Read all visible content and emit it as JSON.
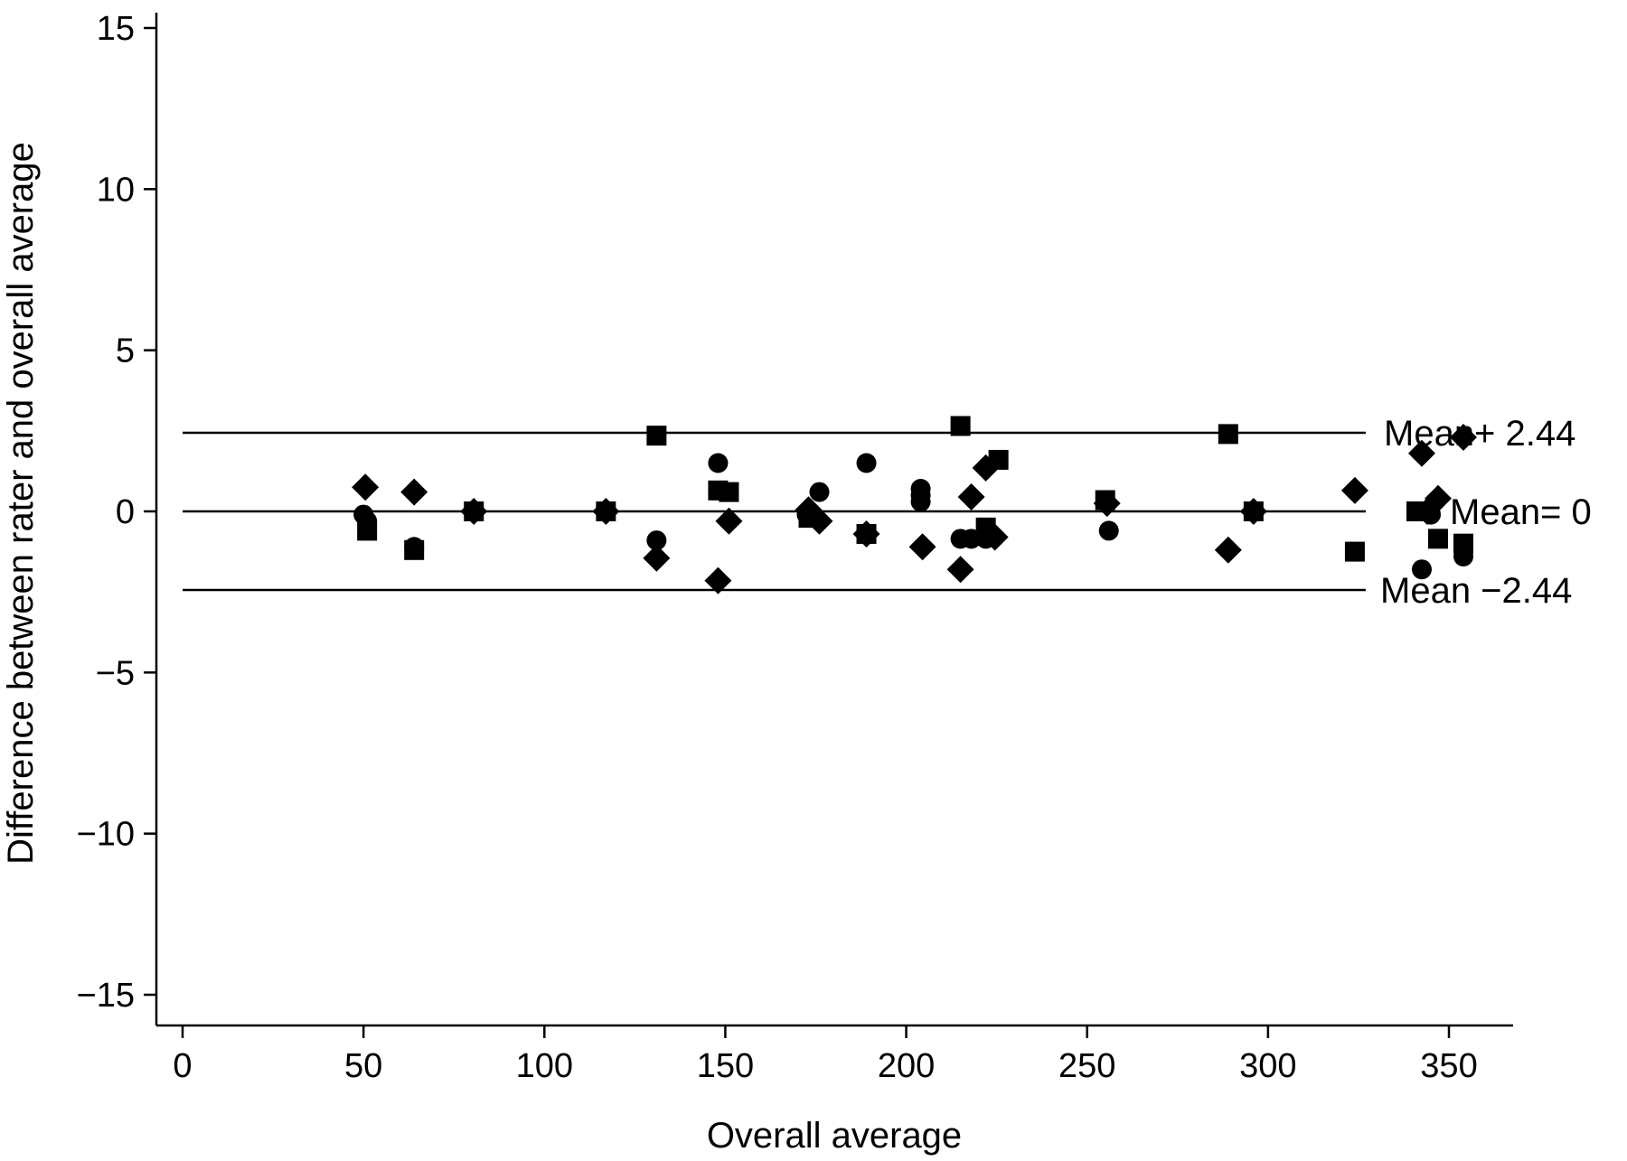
{
  "chart_data": {
    "type": "scatter",
    "title": "",
    "xlabel": "Overall average",
    "ylabel": "Difference between rater and overall average",
    "xlim": [
      -8,
      366
    ],
    "ylim": [
      -15.8,
      15.8
    ],
    "xticks": [
      0,
      50,
      100,
      150,
      200,
      250,
      300,
      350
    ],
    "yticks": [
      15,
      10,
      5,
      0,
      -5,
      -10,
      -15
    ],
    "xtick_labels": [
      "0",
      "50",
      "100",
      "150",
      "200",
      "250",
      "300",
      "350"
    ],
    "ytick_labels": [
      "15",
      "10",
      "5",
      "0",
      "−5",
      "−10",
      "−15"
    ],
    "grid": false,
    "reference_lines": [
      {
        "y": 2.44,
        "label": "Mean+ 2.44"
      },
      {
        "y": 0,
        "label": "Mean= 0"
      },
      {
        "y": -2.44,
        "label": "Mean −2.44"
      }
    ],
    "series": [
      {
        "marker": "circle",
        "points": [
          [
            50,
            -0.1
          ],
          [
            51,
            -0.3
          ],
          [
            64,
            -1.1
          ],
          [
            80.5,
            0
          ],
          [
            117,
            0
          ],
          [
            131,
            -0.9
          ],
          [
            148,
            1.5
          ],
          [
            172.5,
            -0.1
          ],
          [
            176,
            0.6
          ],
          [
            189,
            1.5
          ],
          [
            189,
            -0.7
          ],
          [
            204,
            0.7
          ],
          [
            204,
            0.5
          ],
          [
            204,
            0.3
          ],
          [
            215,
            -0.85
          ],
          [
            218,
            -0.85
          ],
          [
            222,
            -0.85
          ],
          [
            256,
            -0.6
          ],
          [
            296,
            0
          ],
          [
            341,
            0
          ],
          [
            342.5,
            -1.8
          ],
          [
            345,
            -0.1
          ],
          [
            354,
            -1.4
          ]
        ]
      },
      {
        "marker": "square",
        "points": [
          [
            51,
            -0.6
          ],
          [
            64,
            -1.2
          ],
          [
            80.5,
            0
          ],
          [
            117,
            0
          ],
          [
            131,
            2.35
          ],
          [
            148,
            0.65
          ],
          [
            151,
            0.6
          ],
          [
            173,
            -0.2
          ],
          [
            189,
            -0.7
          ],
          [
            215,
            2.65
          ],
          [
            222,
            -0.5
          ],
          [
            225.5,
            1.6
          ],
          [
            255,
            0.35
          ],
          [
            289,
            2.4
          ],
          [
            296,
            0
          ],
          [
            324,
            -1.25
          ],
          [
            341,
            0
          ],
          [
            347,
            -0.85
          ],
          [
            354,
            -1.0
          ]
        ]
      },
      {
        "marker": "diamond",
        "points": [
          [
            50.5,
            0.75
          ],
          [
            64,
            0.6
          ],
          [
            80.5,
            0
          ],
          [
            117,
            0
          ],
          [
            131,
            -1.45
          ],
          [
            148,
            -2.15
          ],
          [
            151,
            -0.3
          ],
          [
            173,
            0.05
          ],
          [
            176,
            -0.3
          ],
          [
            189,
            -0.7
          ],
          [
            204.5,
            -1.1
          ],
          [
            215,
            -1.8
          ],
          [
            218,
            0.45
          ],
          [
            222,
            1.35
          ],
          [
            224.5,
            -0.8
          ],
          [
            255.5,
            0.25
          ],
          [
            289,
            -1.2
          ],
          [
            296,
            0
          ],
          [
            324,
            0.65
          ],
          [
            342.5,
            1.8
          ],
          [
            344,
            0
          ],
          [
            347,
            0.4
          ],
          [
            354,
            2.3
          ]
        ]
      }
    ]
  }
}
